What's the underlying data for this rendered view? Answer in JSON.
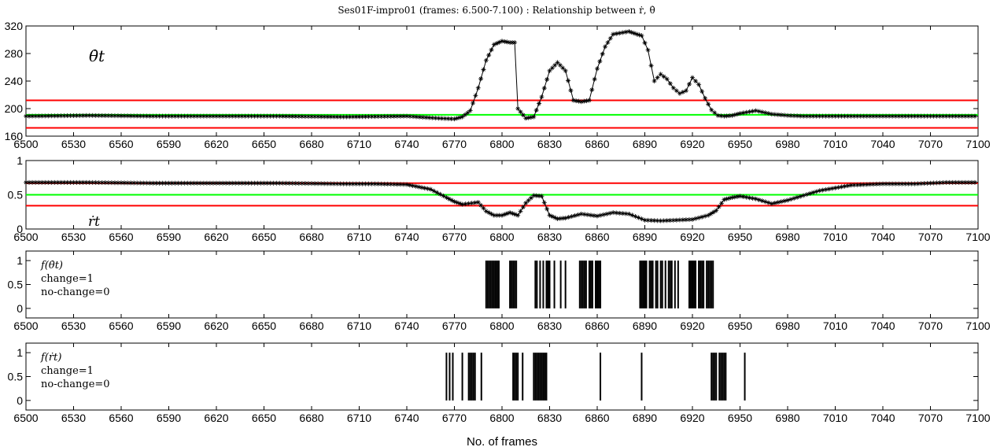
{
  "chart_data": {
    "type": "line",
    "title": "Ses01F-impro01 (frames: 6.500-7.100) : Relationship between ṙ, θ̇",
    "xlabel": "No. of frames",
    "xlim": [
      6500,
      7100
    ],
    "xticks": [
      "6500",
      "6530",
      "6560",
      "6590",
      "6620",
      "6650",
      "6680",
      "6710",
      "6740",
      "6770",
      "6800",
      "6830",
      "6860",
      "6890",
      "6920",
      "6950",
      "6980",
      "7010",
      "7040",
      "7070",
      "7100"
    ],
    "panels": [
      {
        "id": "theta_dot",
        "label": "θ̇t",
        "ylim": [
          160,
          320
        ],
        "yticks": [
          "160",
          "200",
          "240",
          "280",
          "320"
        ],
        "thresholds": [
          {
            "value": 212,
            "color": "#ff0000"
          },
          {
            "value": 191,
            "color": "#00ff00"
          },
          {
            "value": 172,
            "color": "#ff0000"
          }
        ],
        "series": {
          "x": [
            6500,
            6540,
            6580,
            6620,
            6660,
            6700,
            6740,
            6760,
            6770,
            6775,
            6780,
            6785,
            6790,
            6795,
            6800,
            6805,
            6808,
            6810,
            6815,
            6820,
            6825,
            6830,
            6835,
            6840,
            6845,
            6850,
            6855,
            6860,
            6865,
            6870,
            6880,
            6885,
            6888,
            6892,
            6896,
            6900,
            6904,
            6908,
            6912,
            6916,
            6920,
            6924,
            6928,
            6932,
            6936,
            6940,
            6945,
            6950,
            6960,
            6970,
            6980,
            6990,
            7000,
            7040,
            7070,
            7100
          ],
          "y": [
            189,
            190,
            189,
            189,
            189,
            188,
            189,
            186,
            185,
            188,
            197,
            230,
            270,
            293,
            298,
            296,
            296,
            200,
            186,
            188,
            217,
            255,
            267,
            255,
            212,
            210,
            212,
            258,
            290,
            308,
            312,
            308,
            306,
            285,
            240,
            250,
            243,
            230,
            222,
            226,
            245,
            235,
            215,
            198,
            190,
            189,
            190,
            193,
            197,
            192,
            190,
            189,
            189,
            189,
            189,
            189
          ]
        }
      },
      {
        "id": "r_dot",
        "label": "ṙt",
        "ylim": [
          0,
          1
        ],
        "yticks": [
          "0",
          "0.5",
          "1"
        ],
        "thresholds": [
          {
            "value": 0.67,
            "color": "#ff0000"
          },
          {
            "value": 0.5,
            "color": "#00ff00"
          },
          {
            "value": 0.34,
            "color": "#ff0000"
          }
        ],
        "series": {
          "x": [
            6500,
            6540,
            6580,
            6620,
            6660,
            6700,
            6720,
            6740,
            6755,
            6765,
            6770,
            6775,
            6785,
            6790,
            6795,
            6800,
            6805,
            6810,
            6815,
            6820,
            6825,
            6830,
            6835,
            6840,
            6850,
            6860,
            6870,
            6880,
            6890,
            6900,
            6910,
            6920,
            6930,
            6935,
            6940,
            6945,
            6950,
            6960,
            6970,
            6980,
            7000,
            7020,
            7040,
            7060,
            7080,
            7100
          ],
          "y": [
            0.68,
            0.68,
            0.67,
            0.67,
            0.67,
            0.66,
            0.66,
            0.65,
            0.58,
            0.46,
            0.4,
            0.36,
            0.39,
            0.26,
            0.2,
            0.2,
            0.24,
            0.2,
            0.38,
            0.49,
            0.48,
            0.2,
            0.15,
            0.16,
            0.22,
            0.19,
            0.24,
            0.22,
            0.13,
            0.12,
            0.13,
            0.14,
            0.2,
            0.27,
            0.43,
            0.46,
            0.48,
            0.44,
            0.37,
            0.42,
            0.56,
            0.64,
            0.66,
            0.66,
            0.68,
            0.68
          ]
        }
      },
      {
        "id": "f_theta",
        "label_lines": [
          "f(θ̇t)",
          "change=1",
          "no-change=0"
        ],
        "ylim": [
          -0.2,
          1.2
        ],
        "yticks": [
          "0",
          "0.5",
          "1"
        ],
        "spikes": [
          6790,
          6791,
          6792,
          6793,
          6794,
          6795,
          6796,
          6797,
          6798,
          6805,
          6806,
          6807,
          6808,
          6809,
          6821,
          6822,
          6824,
          6826,
          6828,
          6829,
          6830,
          6833,
          6837,
          6840,
          6849,
          6850,
          6851,
          6852,
          6853,
          6855,
          6856,
          6857,
          6859,
          6860,
          6861,
          6862,
          6887,
          6888,
          6889,
          6890,
          6891,
          6893,
          6894,
          6895,
          6897,
          6898,
          6900,
          6901,
          6903,
          6905,
          6906,
          6907,
          6909,
          6911,
          6918,
          6919,
          6920,
          6921,
          6922,
          6924,
          6925,
          6926,
          6927,
          6929,
          6930,
          6931,
          6932,
          6933
        ]
      },
      {
        "id": "f_r",
        "label_lines": [
          "f(ṙt)",
          "change=1",
          "no-change=0"
        ],
        "ylim": [
          -0.2,
          1.2
        ],
        "yticks": [
          "0",
          "0.5",
          "1"
        ],
        "spikes": [
          6765,
          6767,
          6769,
          6775,
          6779,
          6780,
          6781,
          6782,
          6783,
          6787,
          6807,
          6808,
          6809,
          6810,
          6813,
          6820,
          6821,
          6822,
          6823,
          6824,
          6825,
          6826,
          6827,
          6828,
          6862,
          6888,
          6932,
          6933,
          6934,
          6935,
          6937,
          6938,
          6939,
          6940,
          6941,
          6953
        ]
      }
    ]
  }
}
